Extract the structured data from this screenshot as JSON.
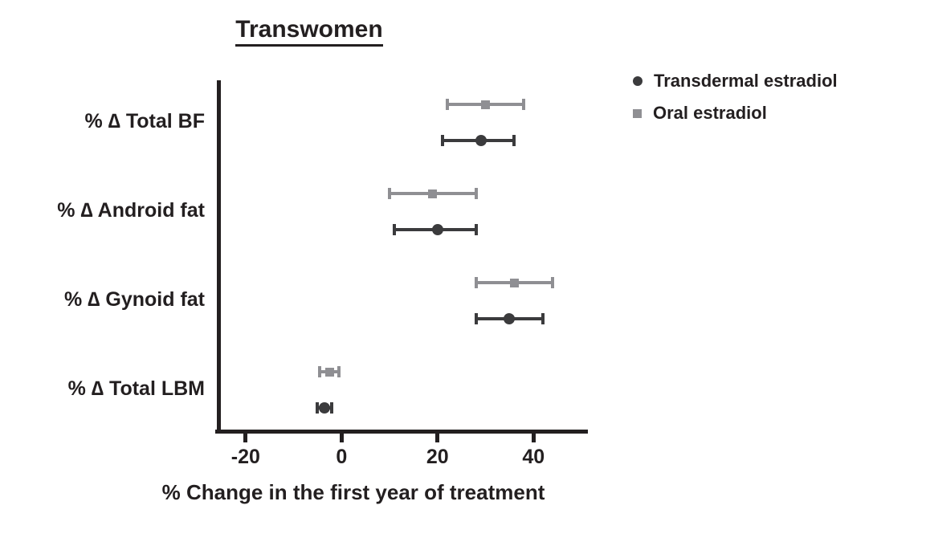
{
  "chart_data": {
    "type": "scatter",
    "title": "Transwomen",
    "xlabel": "% Change in the first year of treatment",
    "xlim": [
      -26,
      51
    ],
    "xticks": [
      -20,
      0,
      20,
      40
    ],
    "grid": false,
    "legend_position": "top-right",
    "categories": [
      "% ∆ Total BF",
      "% ∆ Android fat",
      "% ∆ Gynoid fat",
      "% ∆ Total LBM"
    ],
    "series": [
      {
        "name": "Transdermal estradiol",
        "marker": "circle",
        "color": "#3b3b3d",
        "values": [
          29,
          20,
          35,
          -3.5
        ],
        "ci_low": [
          21,
          11,
          28,
          -5
        ],
        "ci_high": [
          36,
          28,
          42,
          -2
        ]
      },
      {
        "name": "Oral estradiol",
        "marker": "square",
        "color": "#8f8f93",
        "values": [
          30,
          19,
          36,
          -2.5
        ],
        "ci_low": [
          22,
          10,
          28,
          -4.5
        ],
        "ci_high": [
          38,
          28,
          44,
          -0.5
        ]
      }
    ]
  }
}
